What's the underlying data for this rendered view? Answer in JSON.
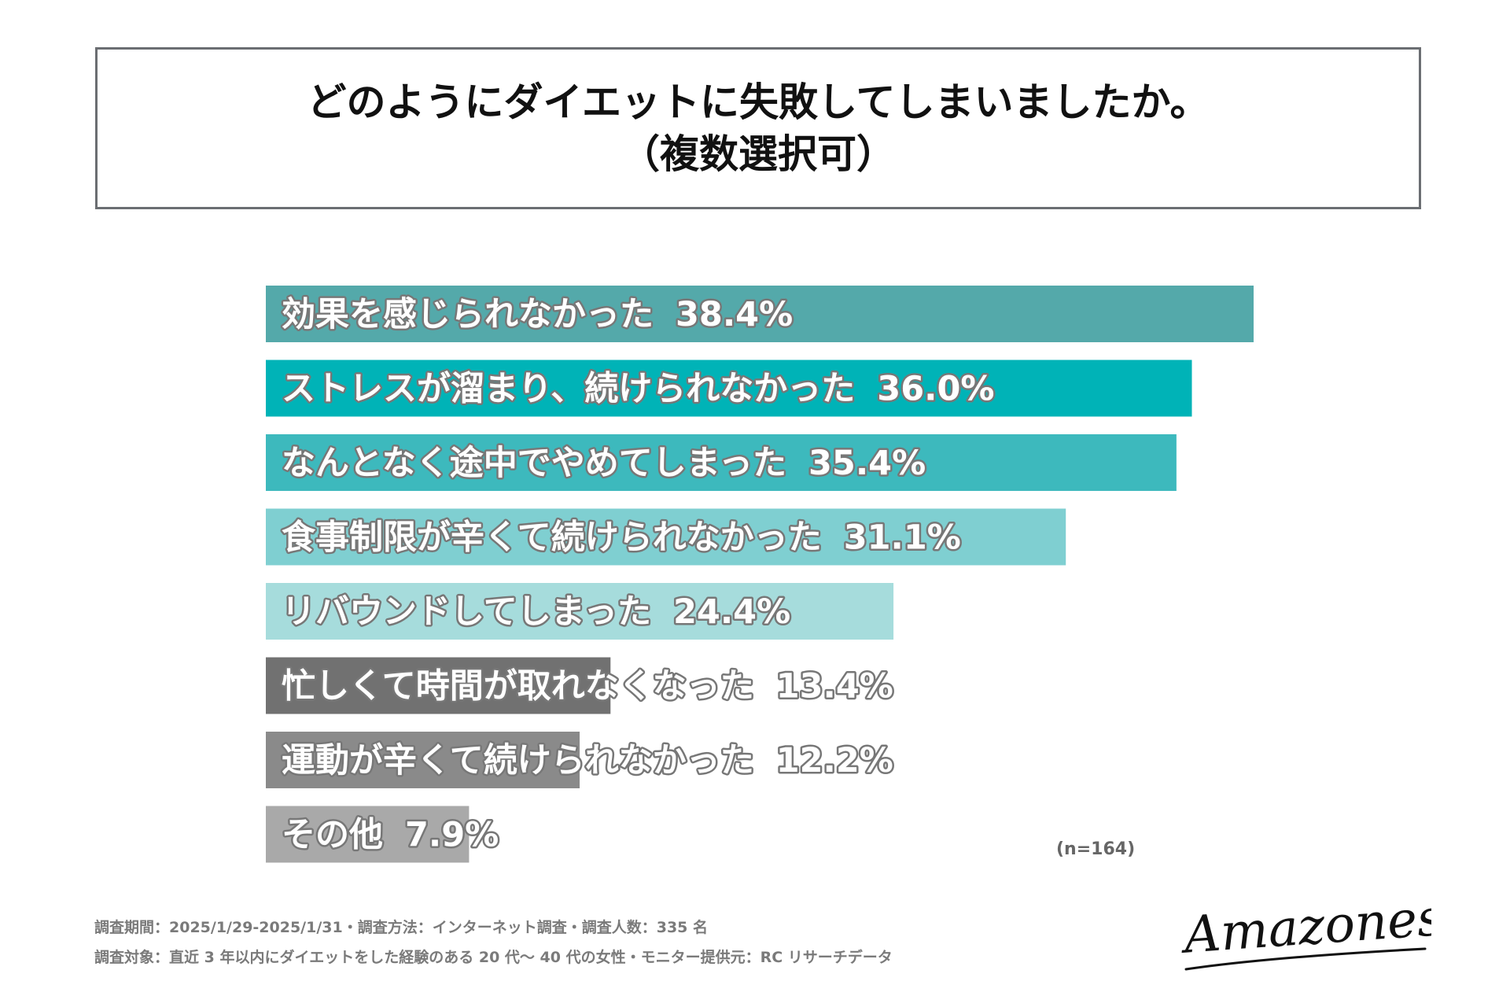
{
  "header": {
    "title_line1": "どのようにダイエットに失敗してしまいましたか。",
    "title_line2": "（複数選択可）"
  },
  "chart_data": {
    "type": "bar",
    "orientation": "horizontal",
    "categories": [
      "効果を感じられなかった",
      "ストレスが溜まり、続けられなかった",
      "なんとなく途中でやめてしまった",
      "食事制限が辛くて続けられなかった",
      "リバウンドしてしまった",
      "忙しくて時間が取れなくなった",
      "運動が辛くて続けられなかった",
      "その他"
    ],
    "values": [
      38.4,
      36.0,
      35.4,
      31.1,
      24.4,
      13.4,
      12.2,
      7.9
    ],
    "value_labels": [
      "38.4%",
      "36.0%",
      "35.4%",
      "31.1%",
      "24.4%",
      "13.4%",
      "12.2%",
      "7.9%"
    ],
    "colors": [
      "#54a9aa",
      "#00b3b7",
      "#3db9bd",
      "#7fcfd1",
      "#a6dcdc",
      "#717171",
      "#8a8a8a",
      "#a9a9a9"
    ],
    "xlim": [
      0,
      38.4
    ],
    "grid": false,
    "legend": "none"
  },
  "sample_note": "(n=164)",
  "footnotes": {
    "line1": "調査期間：2025/1/29-2025/1/31・調査方法：インターネット調査・調査人数：335 名",
    "line2": "調査対象：直近 3 年以内にダイエットをした経験のある 20 代〜 40 代の女性・モニター提供元：RC リサーチデータ"
  },
  "logo": {
    "text": "Amazones"
  }
}
